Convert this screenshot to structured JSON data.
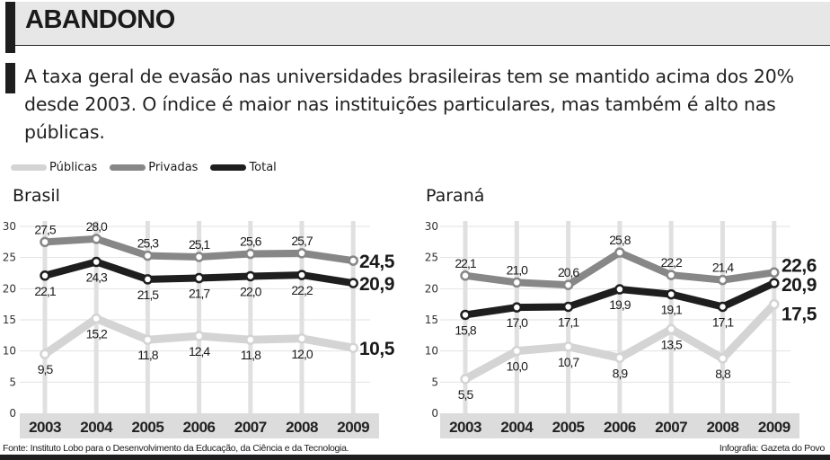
{
  "header": {
    "title": "ABANDONO",
    "intro": "A taxa geral de evasão nas universidades brasileiras tem se mantido acima dos 20% desde 2003. O índice é maior nas instituições particulares, mas também é alto nas públicas."
  },
  "legend": [
    {
      "name": "Públicas",
      "color": "#d4d4d4"
    },
    {
      "name": "Privadas",
      "color": "#878787"
    },
    {
      "name": "Total",
      "color": "#1e1e1e"
    }
  ],
  "footer": {
    "source": "Fonte: Instituto Lobo para o Desenvolvimento da Educação, da Ciência e da Tecnologia.",
    "credit": "Infografia: Gazeta do Povo"
  },
  "chart_data": [
    {
      "type": "line",
      "title": "Brasil",
      "xlabel": "",
      "ylabel": "",
      "ylim": [
        0,
        30
      ],
      "yticks": [
        0,
        5,
        10,
        15,
        20,
        25,
        30
      ],
      "grid": true,
      "legend": "top-left",
      "categories": [
        "2003",
        "2004",
        "2005",
        "2006",
        "2007",
        "2008",
        "2009"
      ],
      "series": [
        {
          "name": "Privadas",
          "color": "#878787",
          "values": [
            27.5,
            28.0,
            25.3,
            25.1,
            25.6,
            25.7,
            24.5
          ],
          "labels": [
            "27,5",
            "28,0",
            "25,3",
            "25,1",
            "25,6",
            "25,7",
            "24,5"
          ]
        },
        {
          "name": "Total",
          "color": "#1e1e1e",
          "values": [
            22.1,
            24.3,
            21.5,
            21.7,
            22.0,
            22.2,
            20.9
          ],
          "labels": [
            "22,1",
            "24,3",
            "21,5",
            "21,7",
            "22,0",
            "22,2",
            "20,9"
          ]
        },
        {
          "name": "Públicas",
          "color": "#d4d4d4",
          "values": [
            9.5,
            15.2,
            11.8,
            12.4,
            11.8,
            12.0,
            10.5
          ],
          "labels": [
            "9,5",
            "15,2",
            "11,8",
            "12,4",
            "11,8",
            "12,0",
            "10,5"
          ]
        }
      ]
    },
    {
      "type": "line",
      "title": "Paraná",
      "xlabel": "",
      "ylabel": "",
      "ylim": [
        0,
        30
      ],
      "yticks": [
        0,
        5,
        10,
        15,
        20,
        25,
        30
      ],
      "grid": true,
      "legend": "top-left",
      "categories": [
        "2003",
        "2004",
        "2005",
        "2006",
        "2007",
        "2008",
        "2009"
      ],
      "series": [
        {
          "name": "Privadas",
          "color": "#878787",
          "values": [
            22.1,
            21.0,
            20.6,
            25.8,
            22.2,
            21.4,
            22.6
          ],
          "labels": [
            "22,1",
            "21,0",
            "20,6",
            "25,8",
            "22,2",
            "21,4",
            "22,6"
          ]
        },
        {
          "name": "Total",
          "color": "#1e1e1e",
          "values": [
            15.8,
            17.0,
            17.1,
            19.9,
            19.1,
            17.1,
            20.9
          ],
          "labels": [
            "15,8",
            "17,0",
            "17,1",
            "19,9",
            "19,1",
            "17,1",
            "20,9"
          ]
        },
        {
          "name": "Públicas",
          "color": "#d4d4d4",
          "values": [
            5.5,
            10.0,
            10.7,
            8.9,
            13.5,
            8.8,
            17.5
          ],
          "labels": [
            "5,5",
            "10,0",
            "10,7",
            "8,9",
            "13,5",
            "8,8",
            "17,5"
          ]
        }
      ]
    }
  ]
}
